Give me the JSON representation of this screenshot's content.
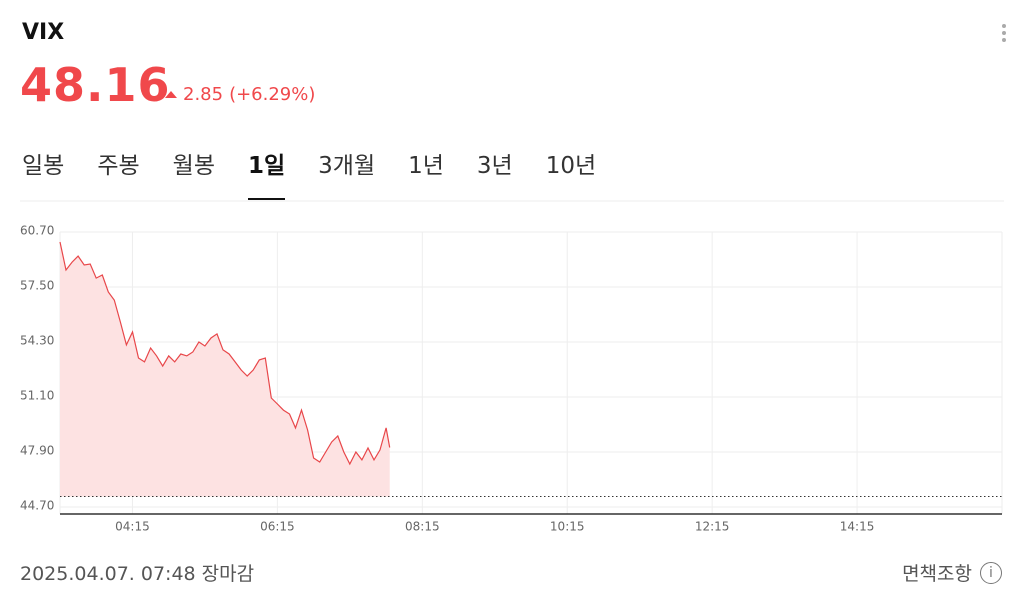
{
  "header": {
    "symbol": "VIX",
    "price": 48.16,
    "change": 2.85,
    "change_pct": "(+6.29%)"
  },
  "tabs": [
    "일봉",
    "주봉",
    "월봉",
    "1일",
    "3개월",
    "1년",
    "3년",
    "10년"
  ],
  "active_tab": 3,
  "chart_data": {
    "type": "area",
    "color": "#e8474a",
    "fill": "#fde2e2",
    "x": [
      "03:15",
      "03:20",
      "03:25",
      "03:30",
      "03:35",
      "03:40",
      "03:45",
      "03:50",
      "03:55",
      "04:00",
      "04:05",
      "04:10",
      "04:15",
      "04:20",
      "04:25",
      "04:30",
      "04:35",
      "04:40",
      "04:45",
      "04:50",
      "04:55",
      "05:00",
      "05:05",
      "05:10",
      "05:15",
      "05:20",
      "05:25",
      "05:30",
      "05:35",
      "05:40",
      "05:45",
      "05:50",
      "05:55",
      "06:00",
      "06:05",
      "06:10",
      "06:15",
      "06:20",
      "06:25",
      "06:30",
      "06:35",
      "06:40",
      "06:45",
      "06:50",
      "06:55",
      "07:00",
      "07:05",
      "07:10",
      "07:15",
      "07:20",
      "07:25",
      "07:30",
      "07:35",
      "07:40",
      "07:45",
      "07:48"
    ],
    "values": [
      60.12,
      58.49,
      58.95,
      59.3,
      58.78,
      58.84,
      58.02,
      58.2,
      57.21,
      56.74,
      55.46,
      54.13,
      54.88,
      53.37,
      53.14,
      53.95,
      53.49,
      52.9,
      53.49,
      53.14,
      53.6,
      53.49,
      53.72,
      54.3,
      54.07,
      54.53,
      54.77,
      53.84,
      53.6,
      53.14,
      52.67,
      52.32,
      52.67,
      53.26,
      53.37,
      51.04,
      50.69,
      50.34,
      50.11,
      49.3,
      50.34,
      49.18,
      47.55,
      47.32,
      47.9,
      48.48,
      48.83,
      47.9,
      47.2,
      47.9,
      47.44,
      48.13,
      47.44,
      48.02,
      49.3,
      48.16
    ],
    "reference_line": 45.31,
    "xlim": [
      "03:15",
      "16:15"
    ],
    "xticks": [
      "04:15",
      "06:15",
      "08:15",
      "10:15",
      "12:15",
      "14:15"
    ],
    "ylim": [
      44.7,
      60.7
    ],
    "yticks": [
      {
        "value": 60.7,
        "label": "60.70"
      },
      {
        "value": 57.5,
        "label": "57.50"
      },
      {
        "value": 54.3,
        "label": "54.30"
      },
      {
        "value": 51.1,
        "label": "51.10"
      },
      {
        "value": 47.9,
        "label": "47.90"
      },
      {
        "value": 44.7,
        "label": "44.70"
      }
    ],
    "grid": true
  },
  "footer": {
    "timestamp": "2025.04.07. 07:48",
    "status": "장마감",
    "disclaimer": "면책조항"
  }
}
